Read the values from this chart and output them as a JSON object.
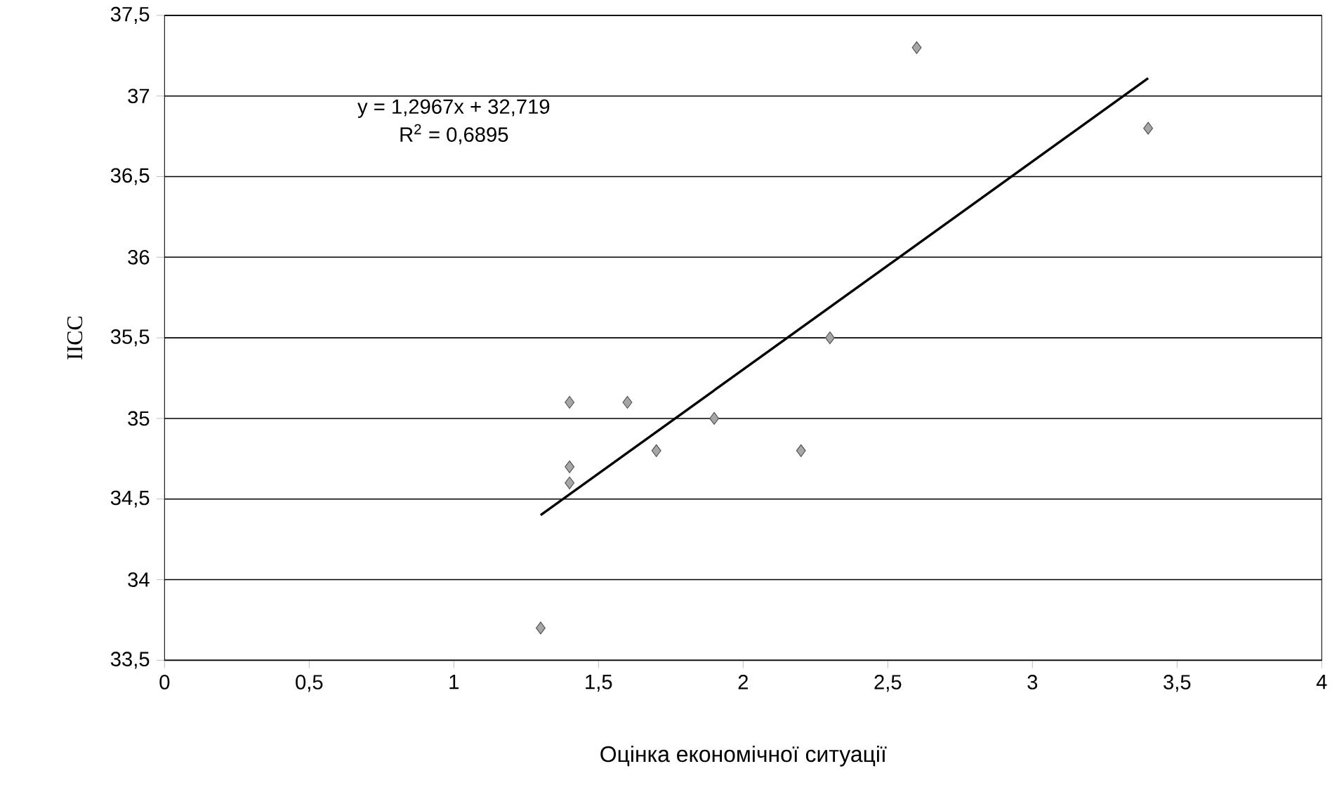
{
  "chart_data": {
    "type": "scatter",
    "xlabel": "Оцінка економічної ситуації",
    "ylabel": "ІІСС",
    "grid": "y",
    "xlim": [
      0,
      4
    ],
    "ylim": [
      33.5,
      37.5
    ],
    "xticks": [
      0,
      {
        "value": 0.5,
        "label": "0,5"
      },
      1,
      {
        "value": 1.5,
        "label": "1,5"
      },
      2,
      {
        "value": 2.5,
        "label": "2,5"
      },
      3,
      {
        "value": 3.5,
        "label": "3,5"
      },
      4
    ],
    "yticks": [
      {
        "value": 33.5,
        "label": "33,5"
      },
      34,
      {
        "value": 34.5,
        "label": "34,5"
      },
      35,
      {
        "value": 35.5,
        "label": "35,5"
      },
      36,
      {
        "value": 36.5,
        "label": "36,5"
      },
      37,
      {
        "value": 37.5,
        "label": "37,5"
      }
    ],
    "annotations": [
      "y = 1,2967x + 32,719",
      "R$^{2}$ = 0,6895"
    ],
    "series": [
      {
        "marker": "diamond",
        "color": "#a6a6a6",
        "x": [
          1.3,
          1.4,
          1.4,
          1.4,
          1.6,
          1.7,
          1.9,
          2.2,
          2.3,
          2.6,
          3.4
        ],
        "values": [
          33.7,
          34.6,
          34.7,
          35.1,
          35.1,
          34.8,
          35.0,
          34.8,
          35.5,
          37.3,
          36.8
        ]
      },
      {
        "type": "line",
        "color": "#000000",
        "x": [
          1.3,
          3.4
        ],
        "values": [
          34.4,
          37.11
        ]
      }
    ]
  }
}
